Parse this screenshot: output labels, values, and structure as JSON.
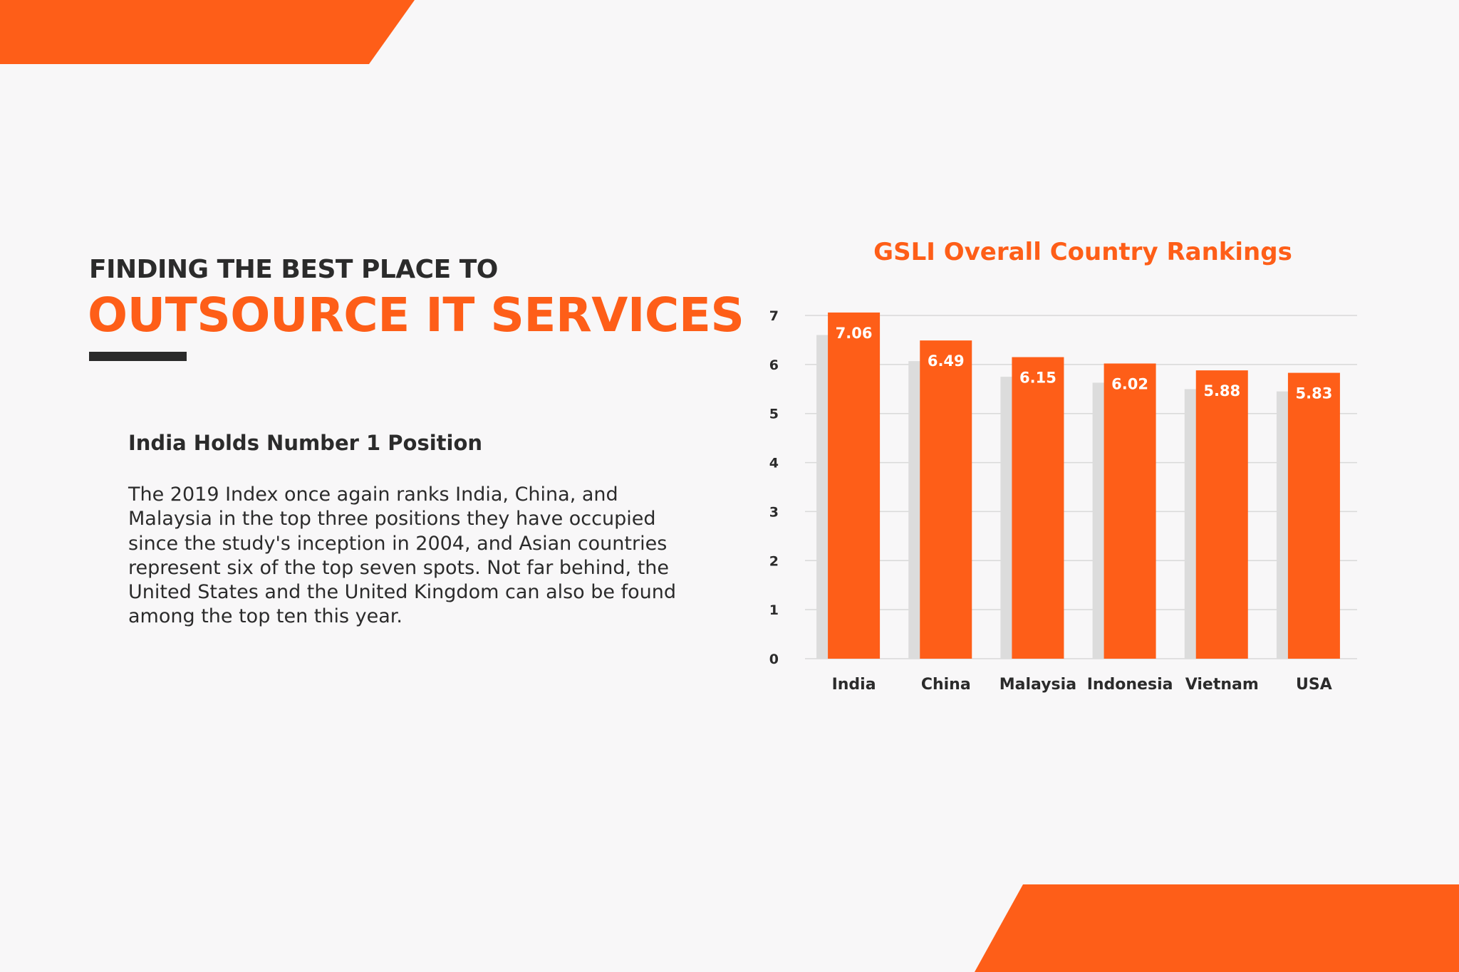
{
  "header": {
    "eyebrow": "FINDING THE BEST PLACE TO",
    "headline": "OUTSOURCE IT SERVICES"
  },
  "content": {
    "subheading": "India Holds Number 1 Position",
    "body_lines": [
      "The 2019 Index once again ranks India, China, and",
      "Malaysia in the top three positions they have occupied",
      "since the study's inception in 2004, and Asian countries",
      "represent six of the top seven spots.  Not far behind, the",
      "United States and the United Kingdom can also be found",
      "among the top ten this year."
    ]
  },
  "colors": {
    "accent": "#fe5e18",
    "dark": "#2b2b2b",
    "background": "#f8f7f8",
    "bar_shadow": "#dcdcdc",
    "grid": "#d9d9d9"
  },
  "chart_data": {
    "type": "bar",
    "title": "GSLI Overall Country Rankings",
    "categories": [
      "India",
      "China",
      "Malaysia",
      "Indonesia",
      "Vietnam",
      "USA"
    ],
    "values": [
      7.06,
      6.49,
      6.15,
      6.02,
      5.88,
      5.83
    ],
    "data_labels": [
      "7.06",
      "6.49",
      "6.15",
      "6.02",
      "5.88",
      "5.83"
    ],
    "y_ticks": [
      0,
      1,
      2,
      3,
      4,
      5,
      6,
      7
    ],
    "ylim": [
      0,
      7
    ],
    "grid": true,
    "xlabel": "",
    "ylabel": ""
  }
}
